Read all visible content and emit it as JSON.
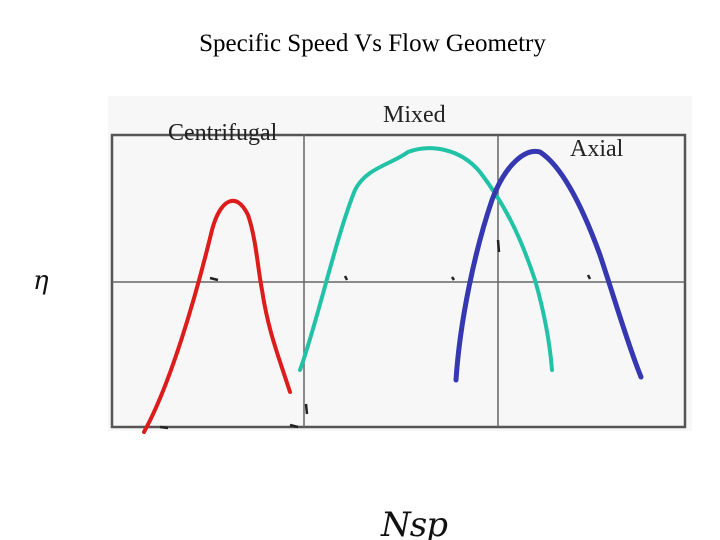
{
  "slide": {
    "title": "Specific Speed Vs Flow Geometry"
  },
  "chart": {
    "y_axis_symbol": "η",
    "x_axis_symbol": "Nsp",
    "curves": [
      {
        "label": "Centrifugal",
        "color": "#dd1c1c"
      },
      {
        "label": "Mixed",
        "color": "#22c2a6"
      },
      {
        "label": "Axial",
        "color": "#3538b0"
      }
    ]
  }
}
